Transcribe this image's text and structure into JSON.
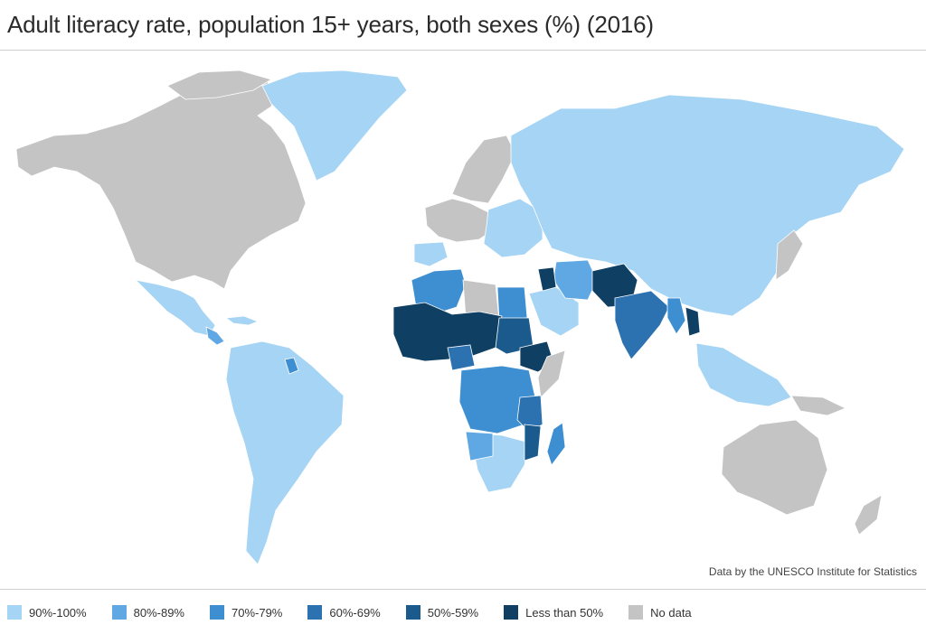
{
  "title": "Adult literacy rate, population 15+ years, both sexes (%) (2016)",
  "credit": "Data by the UNESCO Institute for Statistics",
  "legend": [
    {
      "label": "90%-100%",
      "color": "#a6d4f4"
    },
    {
      "label": "80%-89%",
      "color": "#5fa8e4"
    },
    {
      "label": "70%-79%",
      "color": "#3d8fd2"
    },
    {
      "label": "60%-69%",
      "color": "#2d72b0"
    },
    {
      "label": "50%-59%",
      "color": "#1b5a8c"
    },
    {
      "label": "Less than 50%",
      "color": "#0f3f63"
    },
    {
      "label": "No data",
      "color": "#c4c4c4"
    }
  ]
}
